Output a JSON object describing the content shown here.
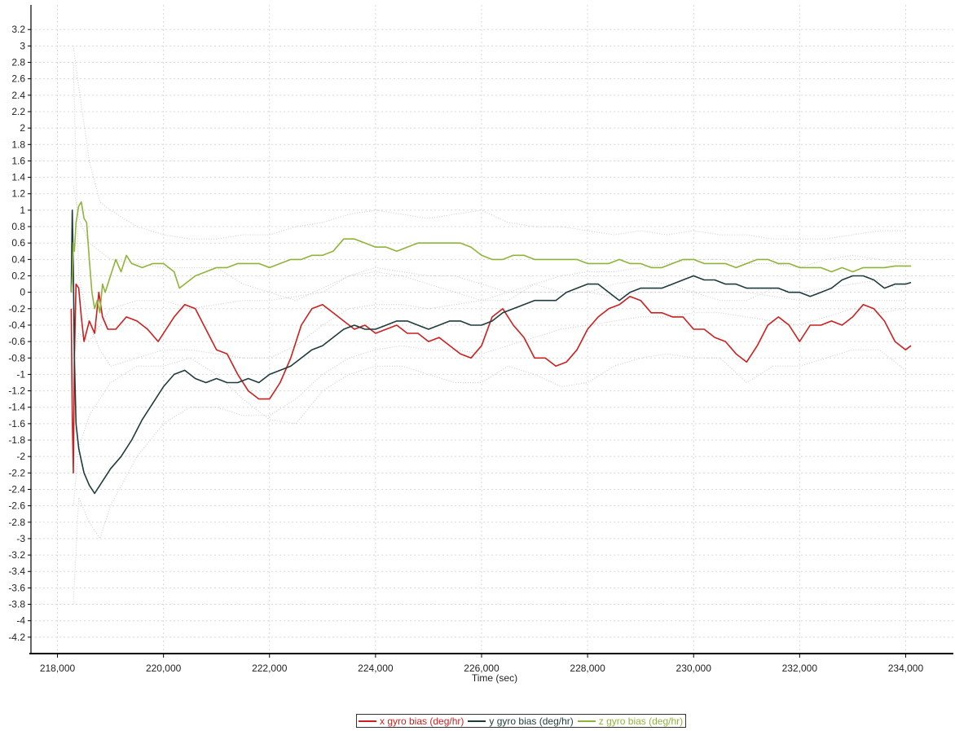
{
  "chart_data": {
    "type": "line",
    "xlabel": "Time (sec)",
    "ylabel": "",
    "xlim": [
      217500,
      234900
    ],
    "ylim": [
      -4.4,
      3.5
    ],
    "x_ticks": [
      218000,
      220000,
      222000,
      224000,
      226000,
      228000,
      230000,
      232000,
      234000
    ],
    "x_tick_labels": [
      "218,000",
      "220,000",
      "222,000",
      "224,000",
      "226,000",
      "228,000",
      "230,000",
      "232,000",
      "234,000"
    ],
    "y_ticks": [
      3.2,
      3,
      2.8,
      2.6,
      2.4,
      2.2,
      2,
      1.8,
      1.6,
      1.4,
      1.2,
      1,
      0.8,
      0.6,
      0.4,
      0.2,
      0,
      -0.2,
      -0.4,
      -0.6,
      -0.8,
      -1,
      -1.2,
      -1.4,
      -1.6,
      -1.8,
      -2,
      -2.2,
      -2.4,
      -2.6,
      -2.8,
      -3,
      -3.2,
      -3.4,
      -3.6,
      -3.8,
      -4,
      -4.2
    ],
    "y_tick_labels": [
      "3.2",
      "3",
      "2.8",
      "2.6",
      "2.4",
      "2.2",
      "2",
      "1.8",
      "1.6",
      "1.4",
      "1.2",
      "1",
      "0.8",
      "0.6",
      "0.4",
      "0.2",
      "0",
      "-0.2",
      "-0.4",
      "-0.6",
      "-0.8",
      "-1",
      "-1.2",
      "-1.4",
      "-1.6",
      "-1.8",
      "-2",
      "-2.2",
      "-2.4",
      "-2.6",
      "-2.8",
      "-3",
      "-3.2",
      "-3.4",
      "-3.6",
      "-3.8",
      "-4",
      "-4.2"
    ],
    "grid": true,
    "legend_position": "bottom-center",
    "series": [
      {
        "name": "x gyro bias (deg/hr)",
        "color": "#cc1f1f",
        "x": [
          218260,
          218280,
          218300,
          218320,
          218350,
          218400,
          218450,
          218500,
          218600,
          218700,
          218780,
          218850,
          218950,
          219100,
          219300,
          219500,
          219700,
          219900,
          220050,
          220200,
          220400,
          220600,
          220800,
          221000,
          221200,
          221400,
          221600,
          221800,
          222000,
          222200,
          222400,
          222600,
          222800,
          223000,
          223200,
          223400,
          223600,
          223800,
          224000,
          224200,
          224400,
          224600,
          224800,
          225000,
          225200,
          225400,
          225600,
          225800,
          226000,
          226200,
          226400,
          226600,
          226800,
          227000,
          227200,
          227400,
          227600,
          227800,
          228000,
          228200,
          228400,
          228600,
          228800,
          229000,
          229200,
          229400,
          229600,
          229800,
          230000,
          230200,
          230400,
          230600,
          230800,
          231000,
          231200,
          231400,
          231600,
          231800,
          232000,
          232200,
          232400,
          232600,
          232800,
          233000,
          233200,
          233400,
          233600,
          233800,
          234000,
          234100
        ],
        "y": [
          -0.2,
          -1.5,
          -2.2,
          -0.8,
          0.1,
          0.05,
          -0.3,
          -0.6,
          -0.35,
          -0.5,
          0.0,
          -0.3,
          -0.45,
          -0.45,
          -0.3,
          -0.35,
          -0.45,
          -0.6,
          -0.45,
          -0.3,
          -0.15,
          -0.2,
          -0.45,
          -0.7,
          -0.75,
          -1.0,
          -1.2,
          -1.3,
          -1.3,
          -1.1,
          -0.8,
          -0.4,
          -0.2,
          -0.15,
          -0.25,
          -0.35,
          -0.45,
          -0.4,
          -0.5,
          -0.45,
          -0.4,
          -0.5,
          -0.5,
          -0.6,
          -0.55,
          -0.65,
          -0.75,
          -0.8,
          -0.65,
          -0.3,
          -0.2,
          -0.4,
          -0.55,
          -0.8,
          -0.8,
          -0.9,
          -0.85,
          -0.7,
          -0.45,
          -0.3,
          -0.2,
          -0.15,
          -0.05,
          -0.1,
          -0.25,
          -0.25,
          -0.3,
          -0.3,
          -0.45,
          -0.45,
          -0.55,
          -0.6,
          -0.75,
          -0.85,
          -0.65,
          -0.4,
          -0.3,
          -0.4,
          -0.6,
          -0.4,
          -0.4,
          -0.35,
          -0.4,
          -0.3,
          -0.15,
          -0.2,
          -0.35,
          -0.6,
          -0.7,
          -0.65
        ]
      },
      {
        "name": "y gyro bias (deg/hr)",
        "color": "#1f3b3b",
        "x": [
          218260,
          218280,
          218300,
          218320,
          218350,
          218400,
          218450,
          218500,
          218600,
          218700,
          218800,
          218900,
          219000,
          219200,
          219400,
          219600,
          219800,
          220000,
          220200,
          220400,
          220600,
          220800,
          221000,
          221200,
          221400,
          221600,
          221800,
          222000,
          222200,
          222400,
          222600,
          222800,
          223000,
          223200,
          223400,
          223600,
          223800,
          224000,
          224200,
          224400,
          224600,
          224800,
          225000,
          225200,
          225400,
          225600,
          225800,
          226000,
          226200,
          226400,
          226600,
          226800,
          227000,
          227200,
          227400,
          227600,
          227800,
          228000,
          228200,
          228400,
          228600,
          228800,
          229000,
          229200,
          229400,
          229600,
          229800,
          230000,
          230200,
          230400,
          230600,
          230800,
          231000,
          231200,
          231400,
          231600,
          231800,
          232000,
          232200,
          232400,
          232600,
          232800,
          233000,
          233200,
          233400,
          233600,
          233800,
          234000,
          234100
        ],
        "y": [
          0.0,
          1.0,
          0.3,
          -0.8,
          -1.6,
          -1.9,
          -2.05,
          -2.2,
          -2.35,
          -2.45,
          -2.35,
          -2.25,
          -2.15,
          -2.0,
          -1.8,
          -1.55,
          -1.35,
          -1.15,
          -1.0,
          -0.95,
          -1.05,
          -1.1,
          -1.05,
          -1.1,
          -1.1,
          -1.05,
          -1.1,
          -1.0,
          -0.95,
          -0.9,
          -0.8,
          -0.7,
          -0.65,
          -0.55,
          -0.45,
          -0.4,
          -0.45,
          -0.45,
          -0.4,
          -0.35,
          -0.35,
          -0.4,
          -0.45,
          -0.4,
          -0.35,
          -0.35,
          -0.4,
          -0.4,
          -0.35,
          -0.25,
          -0.2,
          -0.15,
          -0.1,
          -0.1,
          -0.1,
          0.0,
          0.05,
          0.1,
          0.1,
          0.0,
          -0.1,
          0.0,
          0.05,
          0.05,
          0.05,
          0.1,
          0.15,
          0.2,
          0.15,
          0.15,
          0.1,
          0.1,
          0.05,
          0.05,
          0.05,
          0.05,
          0.0,
          0.0,
          -0.05,
          0.0,
          0.05,
          0.15,
          0.2,
          0.2,
          0.15,
          0.05,
          0.1,
          0.1,
          0.12
        ]
      },
      {
        "name": "z gyro bias (deg/hr)",
        "color": "#8fb43a",
        "x": [
          218260,
          218280,
          218300,
          218320,
          218350,
          218400,
          218450,
          218500,
          218550,
          218600,
          218650,
          218700,
          218750,
          218800,
          218850,
          218900,
          219000,
          219100,
          219200,
          219300,
          219400,
          219600,
          219800,
          220000,
          220200,
          220300,
          220400,
          220600,
          220800,
          221000,
          221200,
          221400,
          221600,
          221800,
          222000,
          222200,
          222400,
          222600,
          222800,
          223000,
          223200,
          223400,
          223600,
          223800,
          224000,
          224200,
          224400,
          224600,
          224800,
          225000,
          225200,
          225400,
          225600,
          225800,
          226000,
          226200,
          226400,
          226600,
          226800,
          227000,
          227200,
          227400,
          227600,
          227800,
          228000,
          228200,
          228400,
          228600,
          228800,
          229000,
          229200,
          229400,
          229600,
          229800,
          230000,
          230200,
          230400,
          230600,
          230800,
          231000,
          231200,
          231400,
          231600,
          231800,
          232000,
          232200,
          232400,
          232600,
          232800,
          233000,
          233200,
          233400,
          233600,
          233800,
          234000,
          234100
        ],
        "y": [
          0.0,
          0.2,
          0.6,
          0.5,
          0.85,
          1.05,
          1.1,
          0.9,
          0.85,
          0.4,
          0.0,
          -0.2,
          -0.1,
          -0.25,
          0.1,
          0.0,
          0.2,
          0.4,
          0.25,
          0.45,
          0.35,
          0.3,
          0.35,
          0.35,
          0.25,
          0.05,
          0.1,
          0.2,
          0.25,
          0.3,
          0.3,
          0.35,
          0.35,
          0.35,
          0.3,
          0.35,
          0.4,
          0.4,
          0.45,
          0.45,
          0.5,
          0.65,
          0.65,
          0.6,
          0.55,
          0.55,
          0.5,
          0.55,
          0.6,
          0.6,
          0.6,
          0.6,
          0.6,
          0.55,
          0.45,
          0.4,
          0.4,
          0.45,
          0.45,
          0.4,
          0.4,
          0.4,
          0.4,
          0.4,
          0.35,
          0.35,
          0.35,
          0.4,
          0.35,
          0.35,
          0.3,
          0.3,
          0.35,
          0.4,
          0.4,
          0.35,
          0.35,
          0.35,
          0.3,
          0.35,
          0.4,
          0.4,
          0.35,
          0.35,
          0.3,
          0.3,
          0.3,
          0.25,
          0.3,
          0.25,
          0.3,
          0.3,
          0.3,
          0.32,
          0.32,
          0.32
        ]
      }
    ],
    "bounds": {
      "color": "#bdbdbd",
      "x": [
        218300,
        218400,
        218600,
        218800,
        219000,
        219500,
        220000,
        220500,
        221000,
        221500,
        222000,
        222500,
        223000,
        223500,
        224000,
        224500,
        225000,
        225500,
        226000,
        226500,
        227000,
        227500,
        228000,
        228500,
        229000,
        229500,
        230000,
        230500,
        231000,
        231500,
        232000,
        232500,
        233000,
        233500,
        234000
      ],
      "x_upper": [
        1.3,
        0.9,
        0.6,
        0.5,
        0.4,
        0.35,
        0.3,
        0.3,
        0.3,
        0.1,
        0.0,
        -0.1,
        0.05,
        0.2,
        0.25,
        0.2,
        0.1,
        0.0,
        -0.1,
        -0.1,
        0.1,
        0.0,
        0.0,
        0.1,
        0.15,
        0.1,
        0.0,
        -0.1,
        -0.1,
        0.05,
        0.0,
        0.05,
        0.1,
        0.15,
        0.0
      ],
      "x_lower": [
        -2.6,
        -1.9,
        -1.5,
        -1.3,
        -1.1,
        -0.9,
        -0.9,
        -0.8,
        -1.0,
        -1.3,
        -1.55,
        -1.6,
        -1.2,
        -1.0,
        -0.9,
        -0.9,
        -1.0,
        -1.1,
        -1.1,
        -0.9,
        -1.0,
        -1.15,
        -1.1,
        -0.9,
        -0.8,
        -0.75,
        -0.8,
        -0.8,
        -1.1,
        -0.9,
        -0.9,
        -0.8,
        -0.7,
        -0.7,
        -0.95
      ],
      "y_upper": [
        2.8,
        0.2,
        -0.4,
        -0.7,
        -0.9,
        -0.8,
        -0.7,
        -0.7,
        -0.75,
        -0.8,
        -0.8,
        -0.65,
        -0.4,
        -0.2,
        -0.15,
        -0.15,
        -0.2,
        -0.15,
        -0.1,
        0.0,
        0.1,
        0.2,
        0.25,
        0.25,
        0.3,
        0.35,
        0.4,
        0.4,
        0.35,
        0.35,
        0.3,
        0.4,
        0.45,
        0.4,
        0.35
      ],
      "y_lower": [
        -3.8,
        -2.5,
        -2.8,
        -3.0,
        -2.6,
        -2.0,
        -1.6,
        -1.4,
        -1.4,
        -1.5,
        -1.5,
        -1.3,
        -1.0,
        -0.8,
        -0.7,
        -0.65,
        -0.7,
        -0.7,
        -0.75,
        -0.65,
        -0.55,
        -0.45,
        -0.4,
        -0.35,
        -0.3,
        -0.3,
        -0.25,
        -0.25,
        -0.3,
        -0.35,
        -0.4,
        -0.3,
        -0.2,
        -0.25,
        -0.2
      ],
      "z_upper": [
        3.0,
        2.5,
        1.6,
        1.1,
        1.0,
        0.8,
        0.7,
        0.65,
        0.65,
        0.7,
        0.7,
        0.8,
        0.85,
        0.95,
        1.0,
        0.95,
        0.9,
        0.95,
        1.0,
        0.85,
        0.8,
        0.8,
        0.75,
        0.7,
        0.75,
        0.7,
        0.75,
        0.7,
        0.7,
        0.65,
        0.65,
        0.65,
        0.7,
        0.75,
        0.75
      ],
      "z_lower": [
        -0.8,
        -0.5,
        -0.6,
        -0.4,
        -0.2,
        -0.1,
        -0.1,
        -0.2,
        -0.15,
        -0.1,
        -0.1,
        -0.05,
        0.0,
        0.2,
        0.3,
        0.25,
        0.2,
        0.2,
        0.1,
        0.0,
        0.0,
        0.0,
        0.0,
        -0.05,
        0.0,
        0.0,
        0.0,
        0.0,
        0.0,
        -0.05,
        -0.1,
        -0.1,
        -0.1,
        -0.1,
        -0.1
      ]
    }
  }
}
